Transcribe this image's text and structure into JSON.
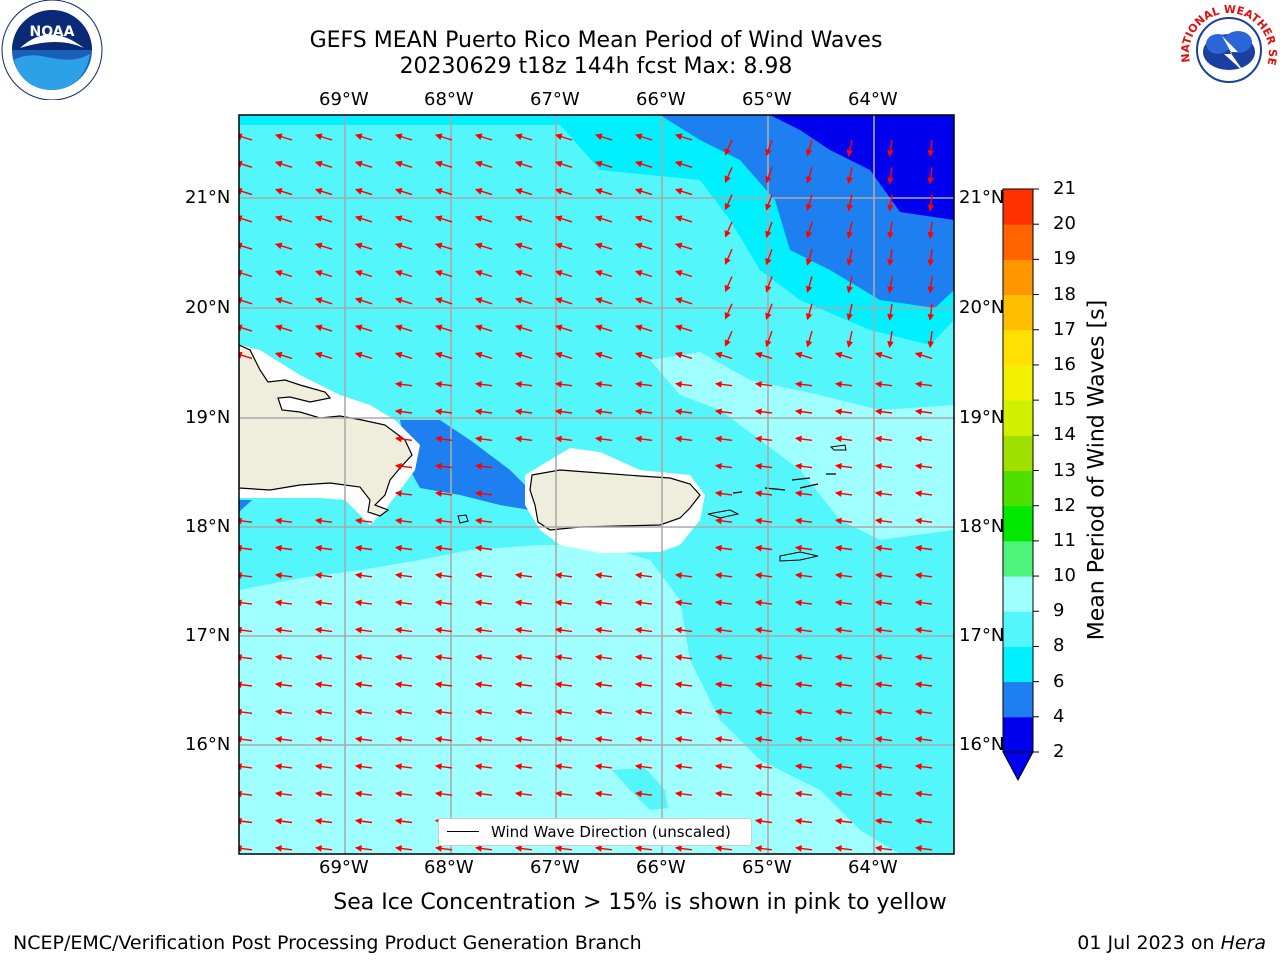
{
  "title": {
    "line1": "GEFS MEAN Puerto Rico Mean Period of Wind Waves",
    "line2": "20230629 t18z 144h fcst   Max: 8.98"
  },
  "axes": {
    "lon_labels": [
      "69°W",
      "68°W",
      "67°W",
      "66°W",
      "65°W",
      "64°W"
    ],
    "lat_labels": [
      "21°N",
      "20°N",
      "19°N",
      "18°N",
      "17°N",
      "16°N"
    ]
  },
  "legend": {
    "label": "Wind Wave Direction (unscaled)"
  },
  "colorbar": {
    "label": "Mean Period of Wind Waves [s]",
    "ticks": [
      "2",
      "4",
      "6",
      "8",
      "9",
      "10",
      "11",
      "12",
      "13",
      "14",
      "15",
      "16",
      "17",
      "18",
      "19",
      "20",
      "21"
    ],
    "colors": [
      "#0000ee",
      "#1e7ff0",
      "#00f0ff",
      "#52f6fb",
      "#a0ffff",
      "#4ff47a",
      "#00e800",
      "#4fe000",
      "#a0e000",
      "#d0f000",
      "#f0f000",
      "#ffe000",
      "#ffbe00",
      "#ff9600",
      "#ff6400",
      "#ff3200",
      "#ff0000"
    ]
  },
  "note": "Sea Ice Concentration > 15% is shown in pink to yellow",
  "footer": {
    "left": "NCEP/EMC/Verification Post Processing Product Generation Branch",
    "right_date": "01 Jul 2023 on ",
    "right_host": "Hera"
  },
  "logos": {
    "left": "NOAA",
    "right": "NATIONAL WEATHER SERVICE"
  },
  "map_colors": {
    "ocean_6_8": "#52f6fb",
    "ocean_8_9": "#a0ffff",
    "ocean_4_6": "#00f0ff",
    "ocean_2_4": "#1e7ff0",
    "ocean_lt2": "#0000ee",
    "land": "#efeedd",
    "arrow": "#ff0000"
  }
}
